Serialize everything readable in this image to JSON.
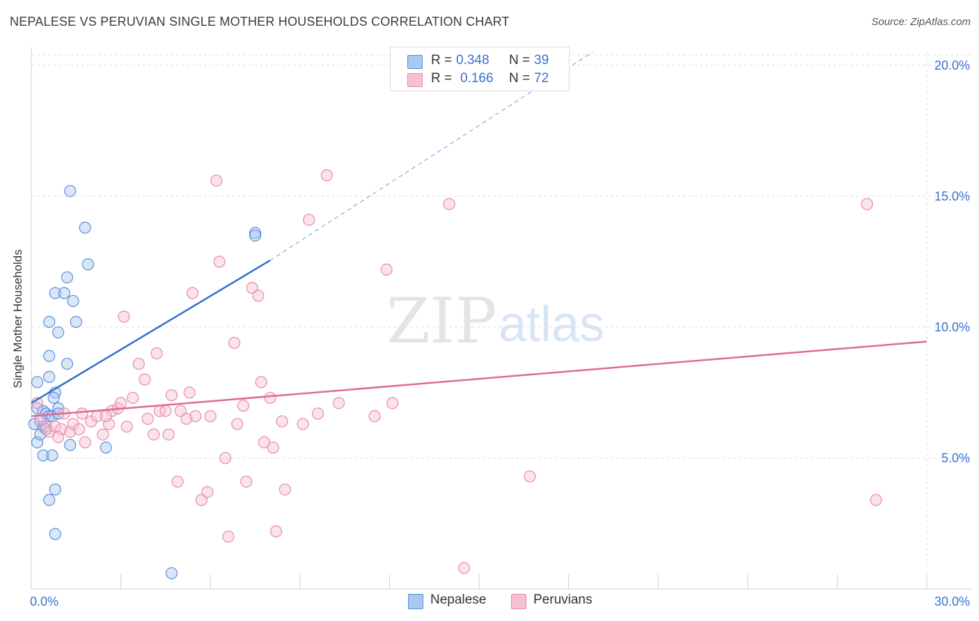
{
  "title": "NEPALESE VS PERUVIAN SINGLE MOTHER HOUSEHOLDS CORRELATION CHART",
  "source": "Source: ZipAtlas.com",
  "watermark": {
    "zip": "ZIP",
    "atlas": "atlas"
  },
  "legend": {
    "rows": [
      {
        "r_label": "R =",
        "r_value": "0.348",
        "n_label": "N =",
        "n_value": "39"
      },
      {
        "r_label": "R =",
        "r_value": "0.166",
        "n_label": "N =",
        "n_value": "72"
      }
    ]
  },
  "bottom_legend": {
    "nepalese": "Nepalese",
    "peruvians": "Peruvians"
  },
  "colors": {
    "nepalese_fill": "#aac8f0",
    "nepalese_stroke": "#5b8fd8",
    "nepalese_line": "#2f6fcc",
    "peruvians_fill": "#f7c0d2",
    "peruvians_stroke": "#e88aab",
    "peruvians_line": "#e06898",
    "tick_label": "#3a6fd0",
    "grid": "#dddddd"
  },
  "chart_data": {
    "type": "scatter",
    "title": "NEPALESE VS PERUVIAN SINGLE MOTHER HOUSEHOLDS CORRELATION CHART",
    "xlabel": "",
    "ylabel": "Single Mother Households",
    "xlim": [
      0,
      30
    ],
    "ylim": [
      0,
      20.5
    ],
    "x_ticks": [
      "0.0%",
      "30.0%"
    ],
    "y_ticks": [
      "5.0%",
      "10.0%",
      "15.0%",
      "20.0%"
    ],
    "y_tick_values": [
      5,
      10,
      15,
      20
    ],
    "grid": true,
    "series": [
      {
        "name": "Nepalese",
        "points": [
          [
            0.2,
            6.9
          ],
          [
            0.3,
            6.4
          ],
          [
            0.4,
            6.8
          ],
          [
            0.5,
            6.7
          ],
          [
            0.6,
            6.6
          ],
          [
            0.4,
            6.2
          ],
          [
            0.2,
            5.6
          ],
          [
            0.3,
            5.9
          ],
          [
            0.5,
            6.1
          ],
          [
            0.1,
            6.3
          ],
          [
            0.7,
            6.6
          ],
          [
            0.9,
            6.9
          ],
          [
            0.8,
            7.5
          ],
          [
            0.75,
            7.3
          ],
          [
            0.6,
            8.1
          ],
          [
            0.6,
            8.9
          ],
          [
            1.2,
            8.6
          ],
          [
            0.9,
            9.8
          ],
          [
            0.6,
            10.2
          ],
          [
            1.5,
            10.2
          ],
          [
            0.8,
            11.3
          ],
          [
            1.1,
            11.3
          ],
          [
            1.4,
            11.0
          ],
          [
            1.2,
            11.9
          ],
          [
            1.9,
            12.4
          ],
          [
            1.8,
            13.8
          ],
          [
            1.3,
            15.2
          ],
          [
            7.5,
            13.6
          ],
          [
            7.5,
            13.5
          ],
          [
            0.2,
            7.9
          ],
          [
            0.4,
            5.1
          ],
          [
            0.7,
            5.1
          ],
          [
            1.3,
            5.5
          ],
          [
            2.5,
            5.4
          ],
          [
            0.8,
            3.8
          ],
          [
            0.6,
            3.4
          ],
          [
            0.8,
            2.1
          ],
          [
            4.7,
            0.6
          ],
          [
            0.9,
            6.7
          ]
        ]
      },
      {
        "name": "Peruvians",
        "points": [
          [
            0.2,
            7.1
          ],
          [
            0.3,
            6.5
          ],
          [
            0.5,
            6.2
          ],
          [
            0.6,
            6.0
          ],
          [
            0.8,
            6.2
          ],
          [
            1.0,
            6.1
          ],
          [
            1.1,
            6.7
          ],
          [
            1.3,
            6.0
          ],
          [
            1.4,
            6.3
          ],
          [
            1.6,
            6.1
          ],
          [
            1.8,
            5.6
          ],
          [
            1.7,
            6.7
          ],
          [
            2.0,
            6.4
          ],
          [
            2.2,
            6.6
          ],
          [
            2.4,
            5.9
          ],
          [
            2.6,
            6.3
          ],
          [
            2.7,
            6.8
          ],
          [
            2.9,
            6.9
          ],
          [
            3.0,
            7.1
          ],
          [
            3.2,
            6.2
          ],
          [
            3.4,
            7.3
          ],
          [
            3.6,
            8.6
          ],
          [
            3.8,
            8.0
          ],
          [
            3.9,
            6.5
          ],
          [
            4.1,
            5.9
          ],
          [
            4.2,
            9.0
          ],
          [
            4.3,
            6.8
          ],
          [
            4.5,
            6.8
          ],
          [
            4.6,
            5.9
          ],
          [
            4.7,
            7.4
          ],
          [
            4.9,
            4.1
          ],
          [
            5.0,
            6.8
          ],
          [
            5.2,
            6.5
          ],
          [
            5.3,
            7.5
          ],
          [
            5.5,
            6.6
          ],
          [
            5.7,
            3.4
          ],
          [
            5.9,
            3.7
          ],
          [
            6.0,
            6.6
          ],
          [
            6.2,
            15.6
          ],
          [
            6.3,
            12.5
          ],
          [
            6.5,
            5.0
          ],
          [
            6.6,
            2.0
          ],
          [
            6.8,
            9.4
          ],
          [
            6.9,
            6.3
          ],
          [
            7.1,
            7.0
          ],
          [
            7.2,
            4.1
          ],
          [
            7.4,
            11.5
          ],
          [
            7.6,
            11.2
          ],
          [
            7.7,
            7.9
          ],
          [
            7.8,
            5.6
          ],
          [
            8.0,
            7.3
          ],
          [
            8.1,
            5.4
          ],
          [
            8.2,
            2.2
          ],
          [
            8.4,
            6.4
          ],
          [
            8.5,
            3.8
          ],
          [
            9.1,
            6.3
          ],
          [
            9.3,
            14.1
          ],
          [
            9.6,
            6.7
          ],
          [
            9.9,
            15.8
          ],
          [
            10.3,
            7.1
          ],
          [
            11.5,
            6.6
          ],
          [
            11.9,
            12.2
          ],
          [
            12.1,
            7.1
          ],
          [
            14.0,
            14.7
          ],
          [
            14.5,
            0.8
          ],
          [
            16.7,
            4.3
          ],
          [
            28.0,
            14.7
          ],
          [
            28.3,
            3.4
          ],
          [
            5.4,
            11.3
          ],
          [
            3.1,
            10.4
          ],
          [
            2.5,
            6.6
          ],
          [
            0.9,
            5.8
          ]
        ]
      }
    ],
    "trend_lines": [
      {
        "series": "Nepalese",
        "from": [
          0,
          7.1
        ],
        "to": [
          8,
          12.55
        ],
        "dashed_to": [
          18.8,
          20.5
        ]
      },
      {
        "series": "Peruvians",
        "from": [
          0,
          6.6
        ],
        "to": [
          30,
          9.45
        ]
      }
    ]
  }
}
